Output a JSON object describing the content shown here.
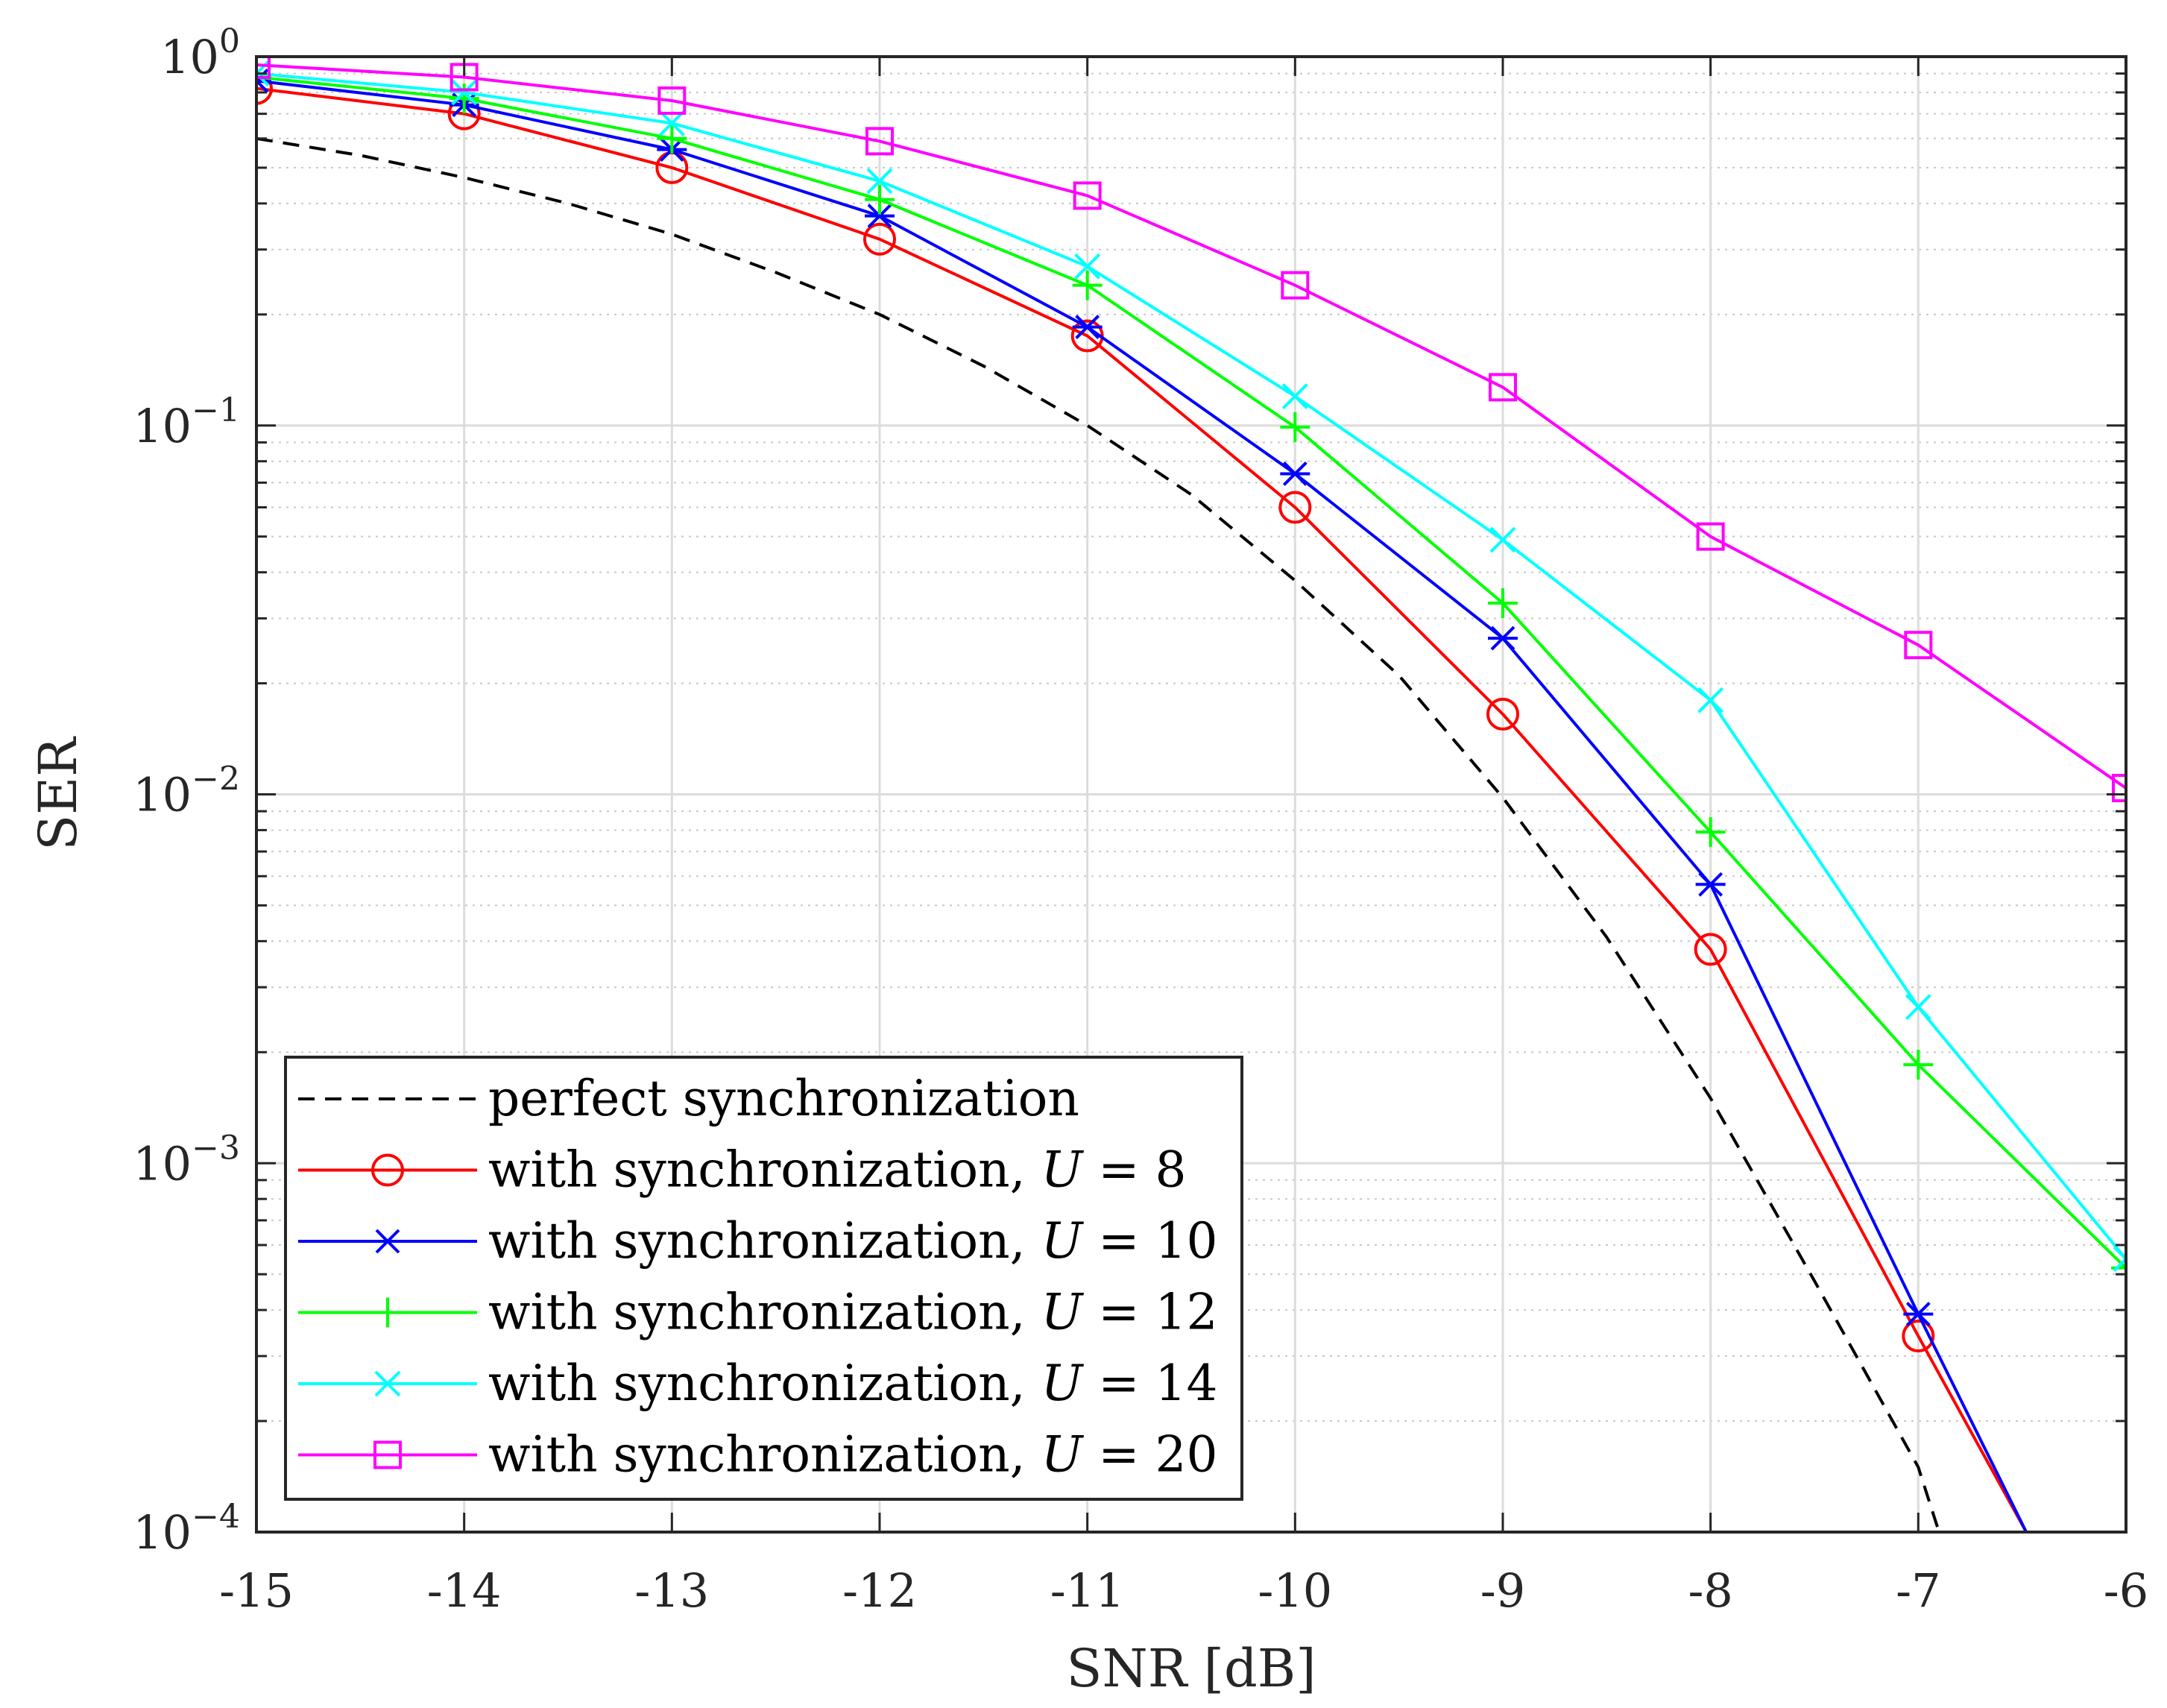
{
  "chart_data": {
    "type": "line",
    "title": "",
    "xlabel": "SNR [dB]",
    "ylabel": "SER",
    "xlim": [
      -15,
      -6
    ],
    "ylim": [
      0.0001,
      1
    ],
    "yscale": "log",
    "grid": true,
    "x_ticks": [
      -15,
      -14,
      -13,
      -12,
      -11,
      -10,
      -9,
      -8,
      -7,
      -6
    ],
    "x_tick_labels": [
      "-15",
      "-14",
      "-13",
      "-12",
      "-11",
      "-10",
      "-9",
      "-8",
      "-7",
      "-6"
    ],
    "y_ticks": [
      {
        "value": 1,
        "base": "10",
        "exp": "0"
      },
      {
        "value": 0.1,
        "base": "10",
        "exp": "−1"
      },
      {
        "value": 0.01,
        "base": "10",
        "exp": "−2"
      },
      {
        "value": 0.001,
        "base": "10",
        "exp": "−3"
      },
      {
        "value": 0.0001,
        "base": "10",
        "exp": "−4"
      }
    ],
    "legend_position": "bottom-left",
    "series": [
      {
        "name": "perfect synchronization",
        "legend_parts": [
          "perfect synchronization"
        ],
        "color": "#000000",
        "dash": "dashed",
        "marker": "none",
        "x": [
          -15,
          -14.5,
          -14,
          -13.5,
          -13,
          -12.5,
          -12,
          -11.5,
          -11,
          -10.5,
          -10,
          -9.5,
          -9,
          -8.5,
          -8,
          -7.5,
          -7,
          -6.9
        ],
        "y": [
          0.6,
          0.54,
          0.47,
          0.4,
          0.33,
          0.26,
          0.2,
          0.145,
          0.1,
          0.065,
          0.038,
          0.021,
          0.0098,
          0.0041,
          0.0015,
          0.00048,
          0.00015,
          0.0001
        ]
      },
      {
        "name": "with synchronization, U = 8",
        "legend_parts": [
          "with synchronization, ",
          "U",
          " = 8"
        ],
        "color": "#ff0000",
        "dash": "solid",
        "marker": "circle",
        "x": [
          -15,
          -14,
          -13,
          -12,
          -11,
          -10,
          -9,
          -8,
          -7,
          -6.48
        ],
        "y": [
          0.82,
          0.7,
          0.5,
          0.32,
          0.175,
          0.06,
          0.0165,
          0.0038,
          0.00034,
          0.0001
        ]
      },
      {
        "name": "with synchronization, U = 10",
        "legend_parts": [
          "with synchronization, ",
          "U",
          " = 10"
        ],
        "color": "#0000ff",
        "dash": "solid",
        "marker": "asterisk",
        "x": [
          -15,
          -14,
          -13,
          -12,
          -11,
          -10,
          -9,
          -8,
          -7,
          -6.48
        ],
        "y": [
          0.86,
          0.74,
          0.56,
          0.37,
          0.185,
          0.074,
          0.0265,
          0.0057,
          0.00039,
          0.0001
        ]
      },
      {
        "name": "with synchronization, U = 12",
        "legend_parts": [
          "with synchronization, ",
          "U",
          " = 12"
        ],
        "color": "#00ff00",
        "dash": "solid",
        "marker": "plus",
        "x": [
          -15,
          -14,
          -13,
          -12,
          -11,
          -10,
          -9,
          -8,
          -7,
          -6
        ],
        "y": [
          0.88,
          0.77,
          0.6,
          0.41,
          0.24,
          0.099,
          0.033,
          0.0079,
          0.00185,
          0.00052
        ]
      },
      {
        "name": "with synchronization, U = 14",
        "legend_parts": [
          "with synchronization, ",
          "U",
          " = 14"
        ],
        "color": "#00ffff",
        "dash": "solid",
        "marker": "x",
        "x": [
          -15,
          -14,
          -13,
          -12,
          -11,
          -10,
          -9,
          -8,
          -7,
          -6
        ],
        "y": [
          0.9,
          0.8,
          0.66,
          0.46,
          0.27,
          0.12,
          0.049,
          0.018,
          0.00265,
          0.00055
        ]
      },
      {
        "name": "with synchronization, U = 20",
        "legend_parts": [
          "with synchronization, ",
          "U",
          " = 20"
        ],
        "color": "#ff00ff",
        "dash": "solid",
        "marker": "square",
        "x": [
          -15,
          -14,
          -13,
          -12,
          -11,
          -10,
          -9,
          -8,
          -7,
          -6
        ],
        "y": [
          0.95,
          0.88,
          0.76,
          0.59,
          0.42,
          0.24,
          0.127,
          0.05,
          0.0254,
          0.0104
        ]
      }
    ]
  }
}
